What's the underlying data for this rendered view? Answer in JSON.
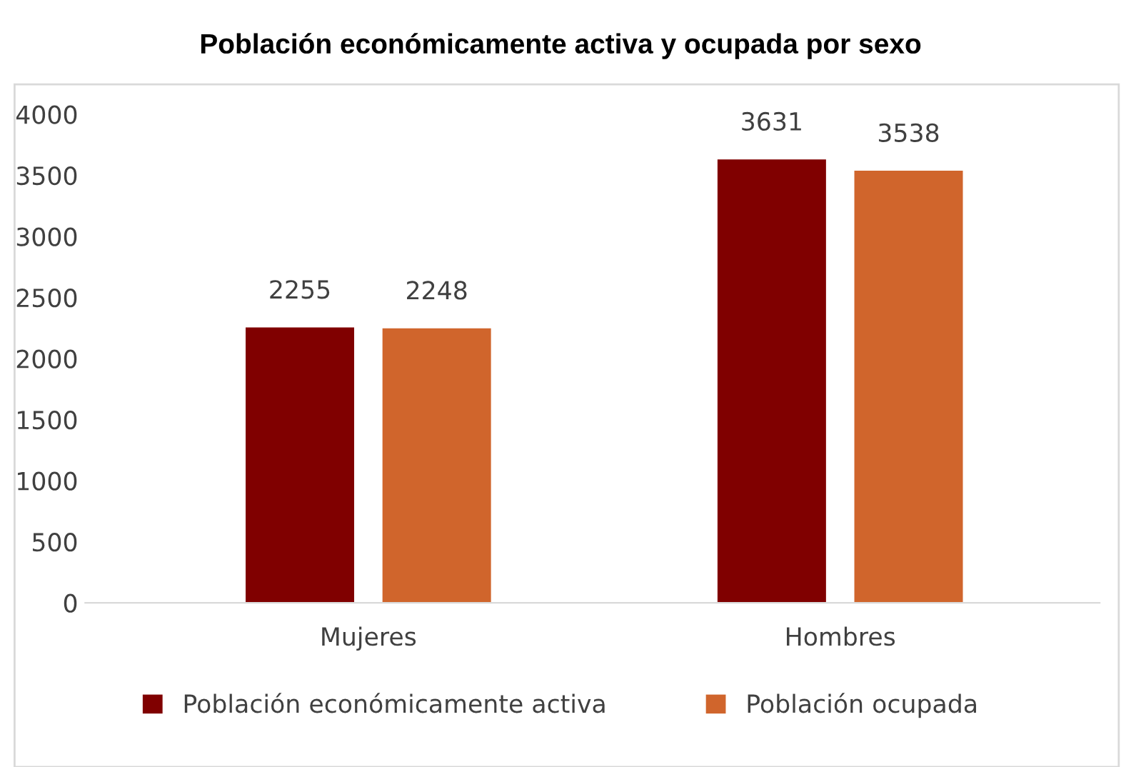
{
  "chart_data": {
    "type": "bar",
    "title": "Población económicamente activa y ocupada por sexo",
    "categories": [
      "Mujeres",
      "Hombres"
    ],
    "series": [
      {
        "name": "Población económicamente activa",
        "color": "#800000",
        "values": [
          2255,
          3631
        ]
      },
      {
        "name": "Población ocupada",
        "color": "#d0652c",
        "values": [
          2248,
          3538
        ]
      }
    ],
    "ylim": [
      0,
      4000
    ],
    "yticks": [
      0,
      500,
      1000,
      1500,
      2000,
      2500,
      3000,
      3500,
      4000
    ],
    "grid": false,
    "legend": "bottom",
    "data_labels": true
  }
}
